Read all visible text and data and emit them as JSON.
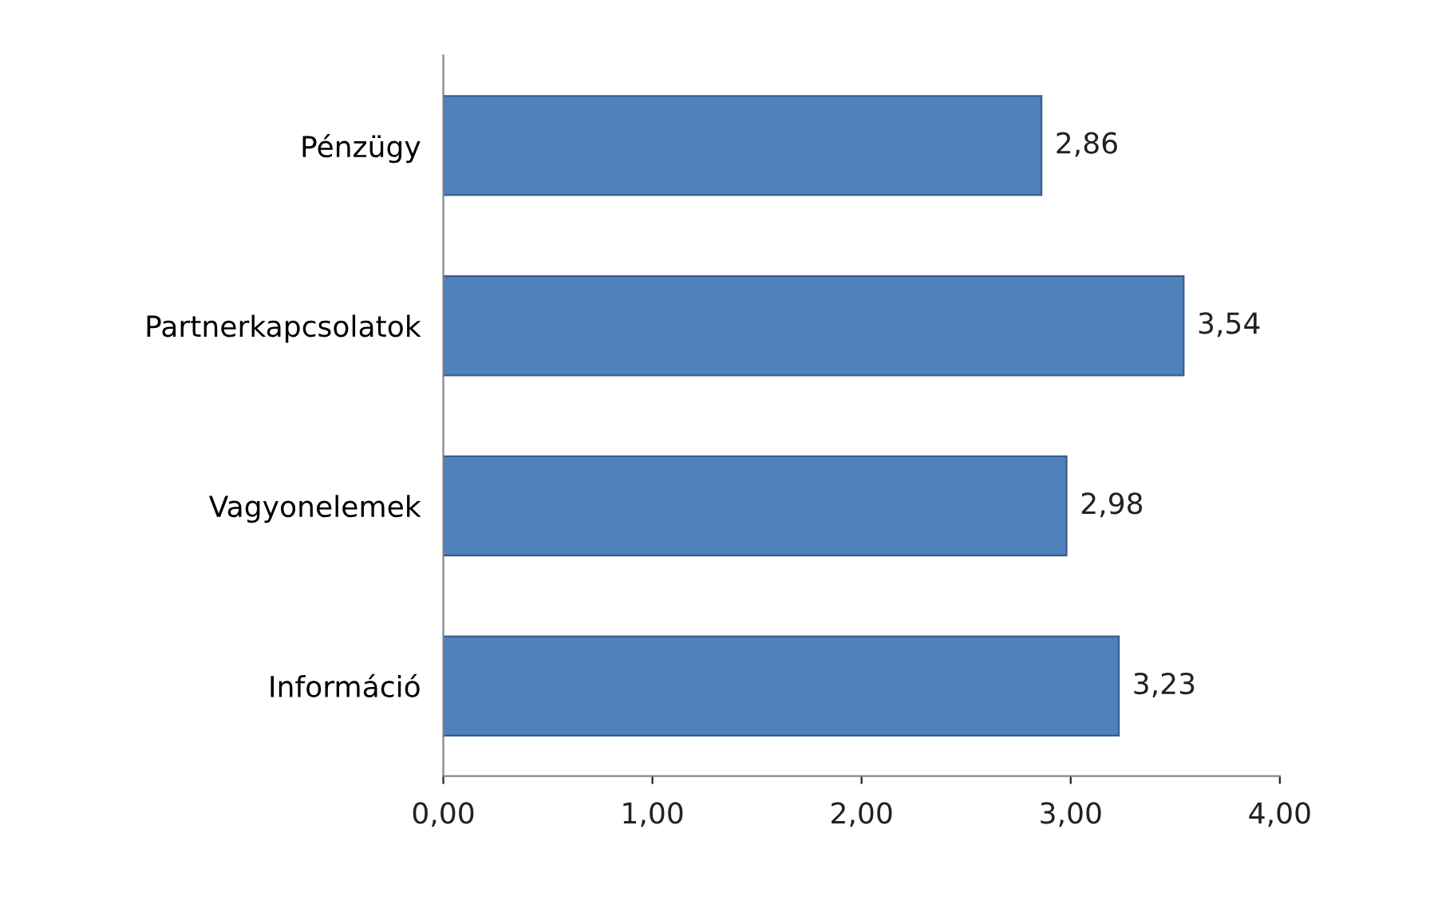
{
  "chart_data": {
    "type": "bar",
    "orientation": "horizontal",
    "categories": [
      "Pénzügy",
      "Partnerkapcsolatok",
      "Vagyonelemek",
      "Információ"
    ],
    "values": [
      2.86,
      3.54,
      2.98,
      3.23
    ],
    "value_labels": [
      "2,86",
      "3,54",
      "2,98",
      "3,23"
    ],
    "color": "#4f81bd",
    "xlim": [
      0,
      4
    ],
    "xticks": [
      {
        "value": 0,
        "label": "0,00"
      },
      {
        "value": 1,
        "label": "1,00"
      },
      {
        "value": 2,
        "label": "2,00"
      },
      {
        "value": 3,
        "label": "3,00"
      },
      {
        "value": 4,
        "label": "4,00"
      }
    ],
    "grid": false,
    "legend": false
  }
}
